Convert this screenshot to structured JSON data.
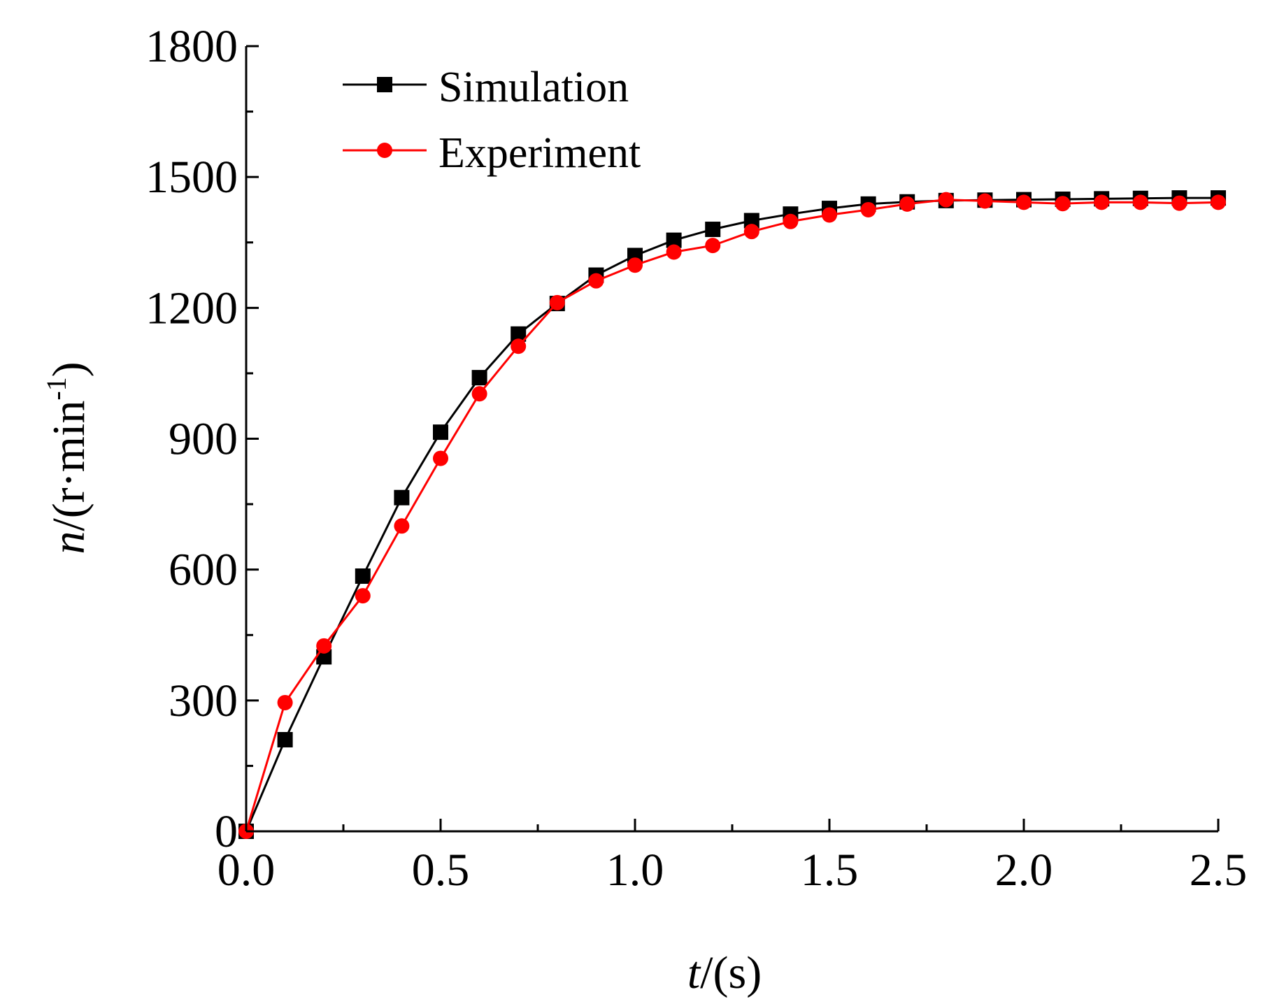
{
  "chart_data": {
    "type": "line",
    "title": "",
    "xlabel": {
      "var": "t",
      "unit_open": "/(",
      "unit": "s",
      "unit_close": ")"
    },
    "ylabel": {
      "var": "n",
      "unit_open": "/(",
      "unit": "r·min",
      "sup": "-1",
      "unit_close": ")"
    },
    "xlim": [
      0,
      2.5
    ],
    "ylim": [
      0,
      1800
    ],
    "xticks": [
      0,
      0.5,
      1.0,
      1.5,
      2.0,
      2.5
    ],
    "xtick_labels": [
      "0.0",
      "0.5",
      "1.0",
      "1.5",
      "2.0",
      "2.5"
    ],
    "yticks": [
      0,
      300,
      600,
      900,
      1200,
      1500,
      1800
    ],
    "ytick_labels": [
      "0",
      "300",
      "600",
      "900",
      "1200",
      "1500",
      "1800"
    ],
    "legend_position": "top-left",
    "grid": false,
    "x": [
      0,
      0.1,
      0.2,
      0.3,
      0.4,
      0.5,
      0.6,
      0.7,
      0.8,
      0.9,
      1.0,
      1.1,
      1.2,
      1.3,
      1.4,
      1.5,
      1.6,
      1.7,
      1.8,
      1.9,
      2.0,
      2.1,
      2.2,
      2.3,
      2.4,
      2.5
    ],
    "series": [
      {
        "name": "Simulation",
        "color": "#000000",
        "marker": "square",
        "values": [
          0,
          210,
          400,
          585,
          765,
          915,
          1040,
          1140,
          1210,
          1275,
          1320,
          1355,
          1380,
          1400,
          1415,
          1428,
          1438,
          1443,
          1446,
          1447,
          1448,
          1449,
          1450,
          1451,
          1452,
          1452
        ]
      },
      {
        "name": "Experiment",
        "color": "#ff0000",
        "marker": "circle",
        "values": [
          0,
          295,
          425,
          540,
          700,
          855,
          1003,
          1112,
          1212,
          1262,
          1298,
          1328,
          1343,
          1375,
          1398,
          1413,
          1425,
          1438,
          1448,
          1445,
          1442,
          1439,
          1442,
          1442,
          1440,
          1442
        ]
      }
    ]
  }
}
